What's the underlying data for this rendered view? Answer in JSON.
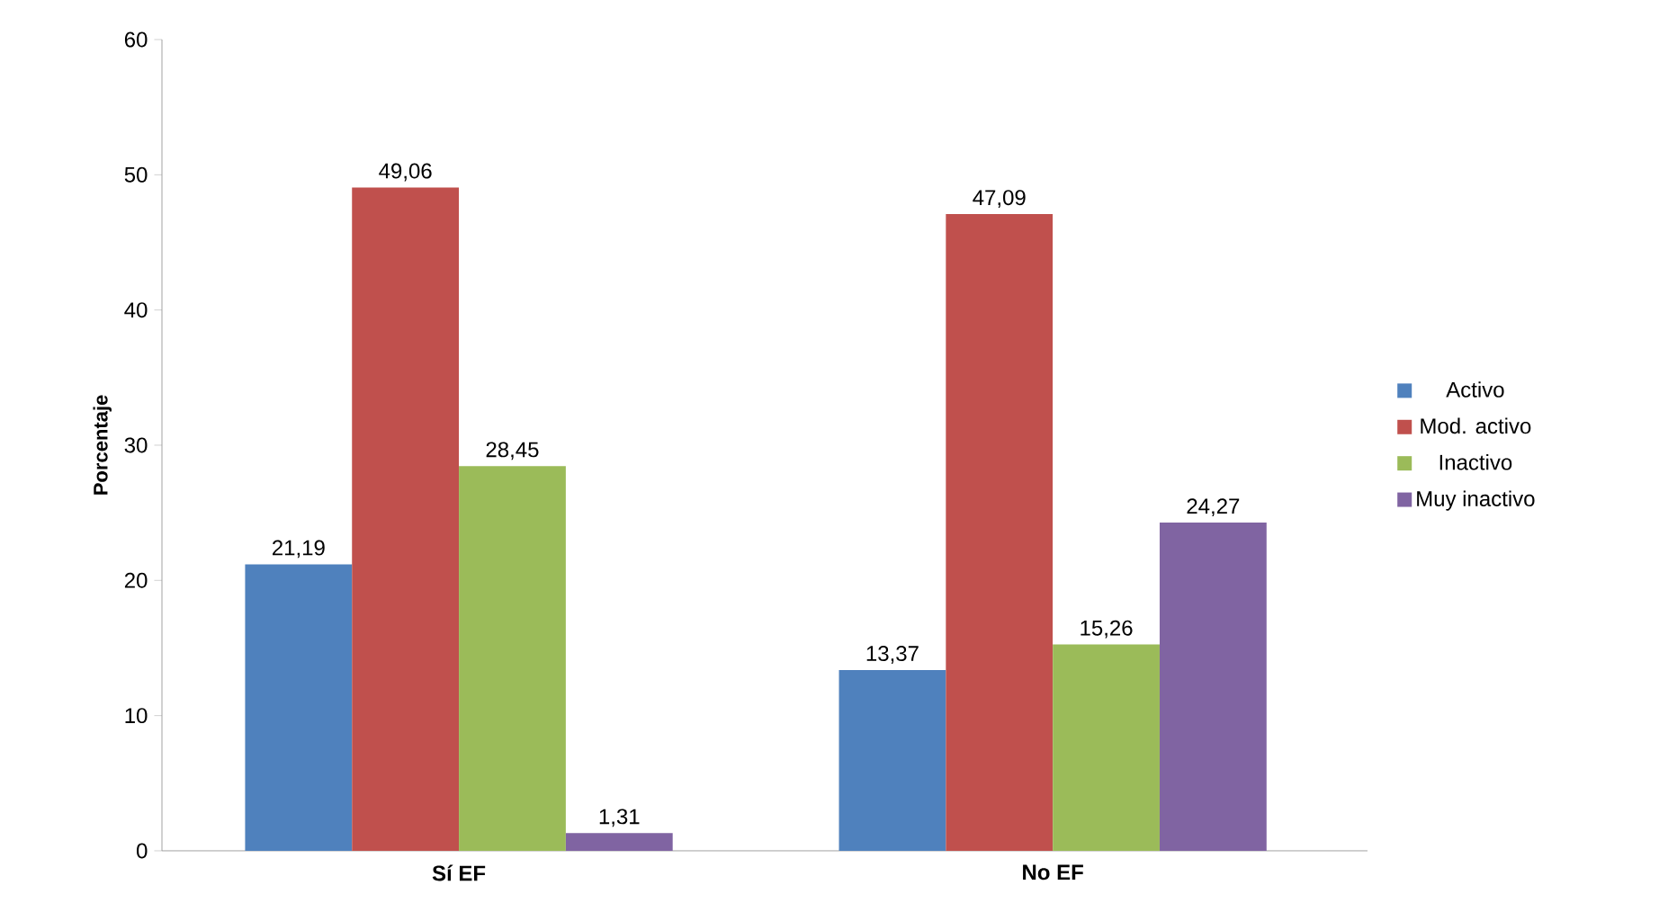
{
  "chart_data": {
    "type": "bar",
    "ylabel": "Porcentaje",
    "categories": [
      "Sí EF",
      "No EF"
    ],
    "series": [
      {
        "name": "Activo",
        "color": "#4f81bd",
        "values": [
          21.19,
          13.37
        ],
        "value_labels": [
          "21,19",
          "13,37"
        ]
      },
      {
        "name": "Mod. activo",
        "color": "#c0504d",
        "values": [
          49.06,
          47.09
        ],
        "value_labels": [
          "49,06",
          "47,09"
        ]
      },
      {
        "name": "Inactivo",
        "color": "#9bbb59",
        "values": [
          28.45,
          15.26
        ],
        "value_labels": [
          "28,45",
          "15,26"
        ]
      },
      {
        "name": "Muy inactivo",
        "color": "#8064a2",
        "values": [
          1.31,
          24.27
        ],
        "value_labels": [
          "1,31",
          "24,27"
        ]
      }
    ],
    "ylim": [
      0,
      60
    ],
    "yticks": [
      0,
      10,
      20,
      30,
      40,
      50,
      60
    ],
    "grid": false,
    "legend": "right"
  }
}
